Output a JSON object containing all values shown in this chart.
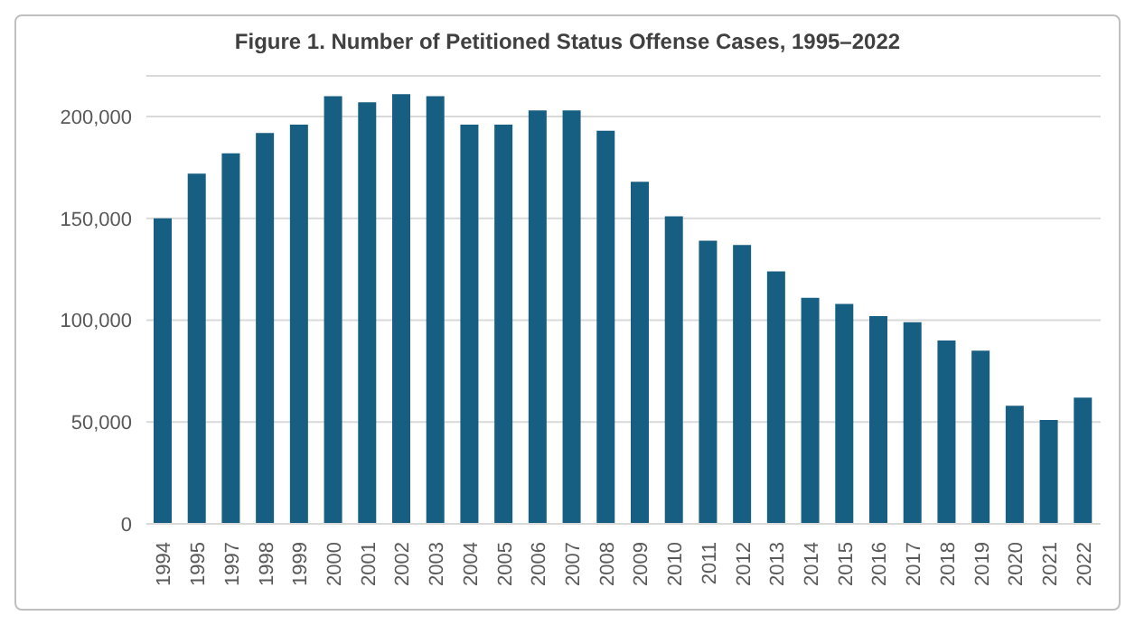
{
  "chart_data": {
    "type": "bar",
    "title": "Figure 1. Number of Petitioned Status Offense Cases, 1995–2022",
    "categories": [
      "1994",
      "1995",
      "1997",
      "1998",
      "1999",
      "2000",
      "2001",
      "2002",
      "2003",
      "2004",
      "2005",
      "2006",
      "2007",
      "2008",
      "2009",
      "2010",
      "2011",
      "2012",
      "2013",
      "2014",
      "2015",
      "2016",
      "2017",
      "2018",
      "2019",
      "2020",
      "2021",
      "2022"
    ],
    "values": [
      150000,
      172000,
      182000,
      192000,
      196000,
      210000,
      207000,
      211000,
      210000,
      196000,
      196000,
      203000,
      203000,
      193000,
      168000,
      151000,
      139000,
      137000,
      124000,
      111000,
      108000,
      102000,
      99000,
      90000,
      85000,
      58000,
      51000,
      62000
    ],
    "color": "#175f82",
    "ylim": [
      0,
      220000
    ],
    "yticks": [
      0,
      {
        "value": 50000,
        "label": "50,000"
      },
      {
        "value": 100000,
        "label": "100,000"
      },
      {
        "value": 150000,
        "label": "150,000"
      },
      {
        "value": 200000,
        "label": "200,000"
      }
    ],
    "grid": "y"
  }
}
